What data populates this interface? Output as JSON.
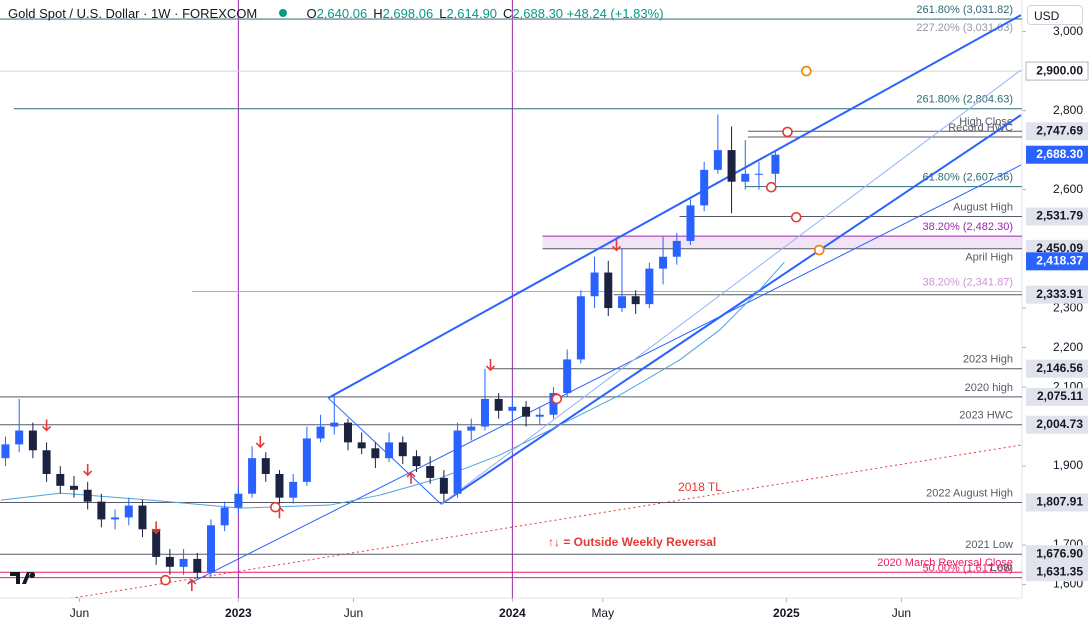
{
  "header": {
    "symbol": "Gold Spot / U.S. Dollar · 1W · FOREXCOM",
    "ohlc": [
      {
        "key": "O",
        "value": "2,640.06"
      },
      {
        "key": "H",
        "value": "2,698.06"
      },
      {
        "key": "L",
        "value": "2,614.90"
      },
      {
        "key": "C",
        "value": "2,688.30"
      }
    ],
    "change": "+48.24 (+1.83%)",
    "currency": "USD"
  },
  "chart_data": {
    "type": "candlestick",
    "xlim": [
      2022.13,
      2025.86
    ],
    "ylim": [
      1566,
      3080
    ],
    "xticks": [
      {
        "value": 2022.42,
        "label": "Jun"
      },
      2023,
      {
        "value": 2023.42,
        "label": "Jun"
      },
      2024,
      {
        "value": 2024.33,
        "label": "May"
      },
      2025,
      {
        "value": 2025.42,
        "label": "Jun"
      }
    ],
    "yticks": [
      {
        "value": 1600,
        "label": "1,600"
      },
      {
        "value": 1700,
        "label": "1,700"
      },
      {
        "value": 1900,
        "label": "1,900"
      },
      {
        "value": 2100,
        "label": "2,100"
      },
      {
        "value": 2200,
        "label": "2,200"
      },
      {
        "value": 2300,
        "label": "2,300"
      },
      {
        "value": 2600,
        "label": "2,600"
      },
      {
        "value": 2800,
        "label": "2,800"
      },
      {
        "value": 3000,
        "label": "3,000"
      }
    ],
    "grid": false,
    "up_color": "#2962ff",
    "down_color": "#1c2340",
    "x": [
      2022.15,
      2022.2,
      2022.25,
      2022.3,
      2022.35,
      2022.4,
      2022.45,
      2022.5,
      2022.55,
      2022.6,
      2022.65,
      2022.7,
      2022.75,
      2022.8,
      2022.85,
      2022.9,
      2022.95,
      2023.0,
      2023.05,
      2023.1,
      2023.15,
      2023.2,
      2023.25,
      2023.3,
      2023.35,
      2023.4,
      2023.45,
      2023.5,
      2023.55,
      2023.6,
      2023.65,
      2023.7,
      2023.75,
      2023.8,
      2023.85,
      2023.9,
      2023.95,
      2024.0,
      2024.05,
      2024.1,
      2024.15,
      2024.2,
      2024.25,
      2024.3,
      2024.35,
      2024.4,
      2024.45,
      2024.5,
      2024.55,
      2024.6,
      2024.65,
      2024.7,
      2024.75,
      2024.8,
      2024.85,
      2024.9,
      2024.96
    ],
    "open": [
      1920,
      1955,
      1990,
      1940,
      1880,
      1850,
      1840,
      1810,
      1765,
      1770,
      1800,
      1740,
      1670,
      1645,
      1665,
      1630,
      1750,
      1795,
      1830,
      1920,
      1880,
      1820,
      1860,
      1970,
      2000,
      2010,
      1960,
      1945,
      1920,
      1960,
      1925,
      1900,
      1870,
      1830,
      1990,
      2000,
      2070,
      2040,
      2050,
      2025,
      2030,
      2085,
      2170,
      2330,
      2390,
      2300,
      2330,
      2310,
      2400,
      2430,
      2470,
      2560,
      2650,
      2700,
      2620,
      2640,
      2640.06
    ],
    "high": [
      1975,
      2070,
      2010,
      1960,
      1900,
      1875,
      1860,
      1830,
      1790,
      1820,
      1815,
      1760,
      1690,
      1690,
      1680,
      1765,
      1810,
      1850,
      1950,
      1935,
      1890,
      1880,
      2000,
      2030,
      2080,
      2020,
      1985,
      1960,
      1985,
      1975,
      1940,
      1925,
      1890,
      2010,
      2020,
      2146,
      2085,
      2075,
      2065,
      2050,
      2100,
      2195,
      2345,
      2430,
      2420,
      2450,
      2345,
      2415,
      2480,
      2490,
      2575,
      2670,
      2790,
      2760,
      2725,
      2670,
      2698.06
    ],
    "low": [
      1900,
      1935,
      1920,
      1860,
      1830,
      1820,
      1790,
      1745,
      1740,
      1750,
      1720,
      1650,
      1625,
      1625,
      1615,
      1620,
      1735,
      1780,
      1820,
      1860,
      1805,
      1805,
      1850,
      1960,
      1980,
      1940,
      1930,
      1895,
      1910,
      1905,
      1885,
      1855,
      1810,
      1820,
      1965,
      1990,
      2020,
      2015,
      2000,
      2005,
      2020,
      2075,
      2160,
      2300,
      2280,
      2290,
      2285,
      2300,
      2360,
      2410,
      2460,
      2545,
      2640,
      2540,
      2600,
      2600,
      2614.9
    ],
    "close": [
      1955,
      1990,
      1940,
      1880,
      1850,
      1840,
      1810,
      1765,
      1770,
      1800,
      1740,
      1670,
      1645,
      1665,
      1630,
      1750,
      1795,
      1830,
      1920,
      1880,
      1820,
      1860,
      1970,
      2000,
      2010,
      1960,
      1945,
      1920,
      1960,
      1925,
      1900,
      1870,
      1830,
      1990,
      2000,
      2070,
      2040,
      2050,
      2025,
      2030,
      2085,
      2170,
      2330,
      2390,
      2300,
      2330,
      2310,
      2400,
      2430,
      2470,
      2560,
      2650,
      2700,
      2620,
      2640,
      2640.06,
      2688.3
    ],
    "ma": {
      "color": "#4fa3e0",
      "x": [
        2022.133,
        2022.352,
        2022.679,
        2023.007,
        2023.335,
        2023.517,
        2023.736,
        2023.954,
        2024.173,
        2024.392,
        2024.61,
        2024.756,
        2024.902,
        2024.993
      ],
      "values": [
        1813.9,
        1831.6,
        1813.9,
        1793.7,
        1801.3,
        1826.6,
        1869.6,
        1927.8,
        2003.8,
        2079.7,
        2168.4,
        2244.3,
        2345.6,
        2416.5
      ]
    },
    "vlines": {
      "color": "#9c27b0",
      "x": [
        2023,
        2024
      ]
    },
    "levels": [
      {
        "price": 3031.82,
        "text": "261.80% (3,031.82)",
        "color": "#2e6b74"
      },
      {
        "price": 3031.03,
        "text": "227.20% (3,031.03)",
        "color": "#9598a1",
        "text_below": true
      },
      {
        "price": 2900,
        "axis_label": "2,900.00",
        "color": "#d1d4dc",
        "axis_color": "#ffffff"
      },
      {
        "price": 2804.63,
        "text": "261.80% (2,804.63)",
        "color": "#2e6b74",
        "from": 2022.18
      },
      {
        "price": 2747.69,
        "text": "High Close",
        "axis_label": "2,747.69",
        "color": "#555a66",
        "from": 2024.86
      },
      {
        "price": 2733,
        "text": "Record HWC",
        "color": "#555a66",
        "from": 2024.86
      },
      {
        "price": 2688.3,
        "axis_label": "2,688.30",
        "axis_color": "#2962ff"
      },
      {
        "price": 2607.36,
        "text": "61.80% (2,607.36)",
        "color": "#2e6b74",
        "from": 2024.85
      },
      {
        "price": 2531.79,
        "text": "August High",
        "axis_label": "2,531.79",
        "color": "#555a66",
        "from": 2024.61
      },
      {
        "price": 2482.3,
        "text": "38.20% (2,482.30)",
        "color": "#9c27b0",
        "from": 2024.11
      },
      {
        "price": 2450.09,
        "text": "April High",
        "axis_label": "2,450.09",
        "color": "#555a66",
        "from": 2024.11,
        "text_below": true
      },
      {
        "price": 2418.37,
        "axis_label": "2,418.37",
        "axis_color": "#2962ff"
      },
      {
        "price": 2341.87,
        "text": "38.20% (2,341.87)",
        "color": "#ce93d8",
        "from": 2022.83
      },
      {
        "price": 2333.91,
        "axis_label": "2,333.91",
        "color": "#555a66",
        "from": 2024.37
      },
      {
        "price": 2146.56,
        "text": "2023 High",
        "axis_label": "2,146.56",
        "color": "#555a66",
        "from": 2023.92
      },
      {
        "price": 2075.11,
        "text": "2020 high",
        "axis_label": "2,075.11",
        "color": "#555a66"
      },
      {
        "price": 2004.73,
        "text": "2023 HWC",
        "axis_label": "2,004.73",
        "color": "#555a66"
      },
      {
        "price": 1807.91,
        "text": "2022 August High",
        "axis_label": "1,807.91",
        "color": "#555a66"
      },
      {
        "price": 1676.9,
        "text": "2021 Low",
        "axis_label": "1,676.90",
        "color": "#555a66"
      },
      {
        "price": 1631.35,
        "text": "2020 March Reversal Close",
        "axis_label": "1,631.35",
        "color": "#e91e63"
      },
      {
        "price": 1617.68,
        "text": "50.00% (1,617.68)",
        "color": "#e91e63"
      }
    ],
    "band": {
      "from": 2024.11,
      "lower": 2450.09,
      "upper": 2482.3,
      "color": "rgba(156,39,176,0.13)"
    },
    "trendlines": [
      {
        "x": [
          2023.328,
          2025.856
        ],
        "y": [
          2072.2,
          3041.8
        ],
        "color": "#2962ff",
        "width": 2
      },
      {
        "x": [
          2023.328,
          2023.74
        ],
        "y": [
          2072.2,
          1803.8
        ],
        "color": "#2962ff",
        "width": 1
      },
      {
        "x": [
          2023.74,
          2025.856
        ],
        "y": [
          1803.8,
          2788.6
        ],
        "color": "#2962ff",
        "width": 2
      },
      {
        "x": [
          2022.825,
          2025.856
        ],
        "y": [
          1603.8,
          2662
        ],
        "color": "#2962ff",
        "width": 1
      },
      {
        "x": [
          2023.74,
          2025.856
        ],
        "y": [
          1803.8,
          2902.5
        ],
        "color": "#90b4f5",
        "width": 1
      },
      {
        "x": [
          2022.352,
          2025.856
        ],
        "y": [
          1561,
          1953.2
        ],
        "color": "#e53935",
        "width": 1,
        "dashed": true
      }
    ],
    "reversals": {
      "color": "#e53935",
      "x": [
        2022.3,
        2022.45,
        2022.7,
        2023.08,
        2023.92,
        2024.38,
        2022.83,
        2023.15,
        2023.63
      ],
      "y": [
        2003,
        1890,
        1743,
        1961,
        2156,
        2459,
        1599,
        1783,
        1870
      ],
      "direction": [
        "down",
        "down",
        "down",
        "down",
        "down",
        "down",
        "up",
        "up",
        "up"
      ]
    },
    "circles": {
      "x": [
        2022.734,
        2023.135,
        2024.162,
        2024.945,
        2025.004,
        2025.036,
        2025.073,
        2025.12
      ],
      "y": [
        1611,
        1796,
        2070,
        2606,
        2746,
        2530,
        2900,
        2447
      ],
      "color": [
        "#e53935",
        "#e53935",
        "#e53935",
        "#e53935",
        "#e53935",
        "#e53935",
        "#f57c00",
        "#f57c00"
      ]
    },
    "annotations": [
      "2018 TL",
      "↑↓ = Outside Weekly Reversal",
      "Low"
    ]
  }
}
